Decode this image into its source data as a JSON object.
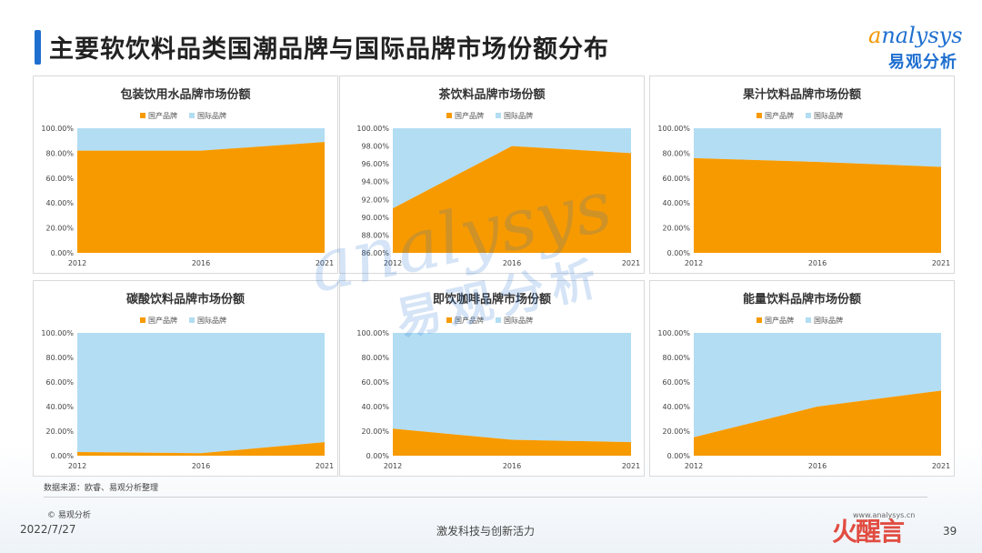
{
  "page": {
    "title": "主要软饮料品类国潮品牌与国际品牌市场份额分布",
    "logo_en": "nalysys",
    "logo_en_initial": "a",
    "logo_cn": "易观分析",
    "source": "数据来源：欧睿、易观分析整理",
    "copyright": "© 易观分析",
    "date": "2022/7/27",
    "slogan": "激发科技与创新活力",
    "site": "www.analysys.cn",
    "page_number": "39",
    "stamp_text": "火醒言",
    "watermark_en": "analysys",
    "watermark_cn": "易观分析"
  },
  "colors": {
    "domestic": "#F79A00",
    "international": "#B2DDF3",
    "accent": "#1E6FD0"
  },
  "chart_data": [
    {
      "type": "area",
      "title": "包装饮用水品牌市场份额",
      "x": [
        "2012",
        "2016",
        "2021"
      ],
      "series": [
        {
          "name": "国产品牌",
          "values": [
            82,
            82,
            89
          ]
        },
        {
          "name": "国际品牌",
          "values": [
            18,
            18,
            11
          ]
        }
      ],
      "ylim": [
        0,
        100
      ],
      "yticks": [
        0,
        20,
        40,
        60,
        80,
        100
      ],
      "ytick_labels": [
        "0.00%",
        "20.00%",
        "40.00%",
        "60.00%",
        "80.00%",
        "100.00%"
      ],
      "legend": "top"
    },
    {
      "type": "area",
      "title": "茶饮料品牌市场份额",
      "x": [
        "2012",
        "2016",
        "2021"
      ],
      "series": [
        {
          "name": "国产品牌",
          "values": [
            91,
            98,
            97.2
          ]
        },
        {
          "name": "国际品牌",
          "values": [
            9,
            2,
            2.8
          ]
        }
      ],
      "ylim": [
        86,
        100
      ],
      "yticks": [
        86,
        88,
        90,
        92,
        94,
        96,
        98,
        100
      ],
      "ytick_labels": [
        "86.00%",
        "88.00%",
        "90.00%",
        "92.00%",
        "94.00%",
        "96.00%",
        "98.00%",
        "100.00%"
      ],
      "legend": "top"
    },
    {
      "type": "area",
      "title": "果汁饮料品牌市场份额",
      "x": [
        "2012",
        "2016",
        "2021"
      ],
      "series": [
        {
          "name": "国产品牌",
          "values": [
            76,
            73,
            69
          ]
        },
        {
          "name": "国际品牌",
          "values": [
            24,
            27,
            31
          ]
        }
      ],
      "ylim": [
        0,
        100
      ],
      "yticks": [
        0,
        20,
        40,
        60,
        80,
        100
      ],
      "ytick_labels": [
        "0.00%",
        "20.00%",
        "40.00%",
        "60.00%",
        "80.00%",
        "100.00%"
      ],
      "legend": "top"
    },
    {
      "type": "area",
      "title": "碳酸饮料品牌市场份额",
      "x": [
        "2012",
        "2016",
        "2021"
      ],
      "series": [
        {
          "name": "国产品牌",
          "values": [
            3,
            2,
            11
          ]
        },
        {
          "name": "国际品牌",
          "values": [
            97,
            98,
            89
          ]
        }
      ],
      "ylim": [
        0,
        100
      ],
      "yticks": [
        0,
        20,
        40,
        60,
        80,
        100
      ],
      "ytick_labels": [
        "0.00%",
        "20.00%",
        "40.00%",
        "60.00%",
        "80.00%",
        "100.00%"
      ],
      "legend": "top"
    },
    {
      "type": "area",
      "title": "即饮咖啡品牌市场份额",
      "x": [
        "2012",
        "2016",
        "2021"
      ],
      "series": [
        {
          "name": "国产品牌",
          "values": [
            22,
            13,
            11
          ]
        },
        {
          "name": "国际品牌",
          "values": [
            78,
            87,
            89
          ]
        }
      ],
      "ylim": [
        0,
        100
      ],
      "yticks": [
        0,
        20,
        40,
        60,
        80,
        100
      ],
      "ytick_labels": [
        "0.00%",
        "20.00%",
        "40.00%",
        "60.00%",
        "80.00%",
        "100.00%"
      ],
      "legend": "top"
    },
    {
      "type": "area",
      "title": "能量饮料品牌市场份额",
      "x": [
        "2012",
        "2016",
        "2021"
      ],
      "series": [
        {
          "name": "国产品牌",
          "values": [
            15,
            40,
            53
          ]
        },
        {
          "name": "国际品牌",
          "values": [
            85,
            60,
            47
          ]
        }
      ],
      "ylim": [
        0,
        100
      ],
      "yticks": [
        0,
        20,
        40,
        60,
        80,
        100
      ],
      "ytick_labels": [
        "0.00%",
        "20.00%",
        "40.00%",
        "60.00%",
        "80.00%",
        "100.00%"
      ],
      "legend": "top"
    }
  ]
}
